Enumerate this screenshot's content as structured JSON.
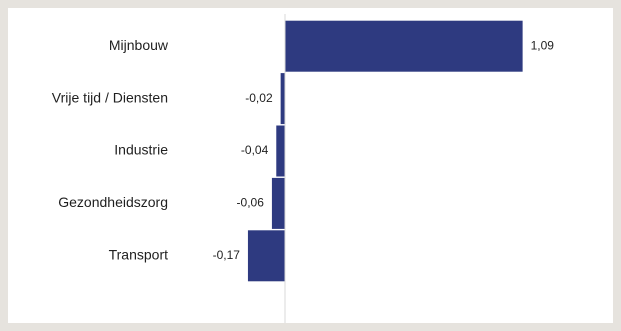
{
  "colors": {
    "bar": "#2e3a80",
    "axis": "#d8d8d8",
    "background": "#ffffff",
    "page": "#e6e3de"
  },
  "chart_data": {
    "type": "bar",
    "orientation": "horizontal",
    "categories": [
      "Mijnbouw",
      "Vrije tijd / Diensten",
      "Industrie",
      "Gezondheidszorg",
      "Transport"
    ],
    "values": [
      1.09,
      -0.02,
      -0.04,
      -0.06,
      -0.17
    ],
    "value_labels": [
      "1,09",
      "-0,02",
      "-0,04",
      "-0,06",
      "-0,17"
    ],
    "title": "",
    "xlabel": "",
    "ylabel": "",
    "grid": false,
    "legend": "none"
  }
}
